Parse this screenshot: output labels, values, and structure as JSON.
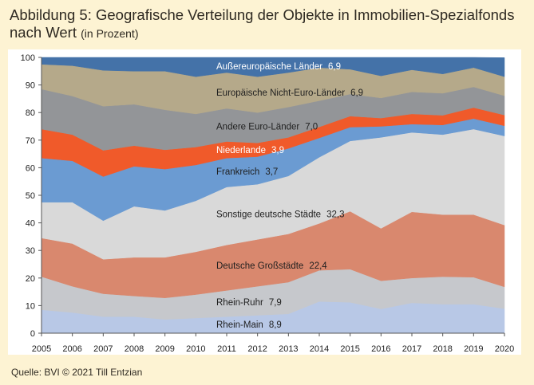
{
  "title": "Abbildung 5: Geografische Verteilung der Objekte in Immobilien-Spezialfonds nach Wert",
  "title_unit": "(in Prozent)",
  "source": "Quelle: BVI © 2021 Till Entzian",
  "chart_data": {
    "type": "area",
    "stacked": true,
    "x": [
      2005,
      2006,
      2007,
      2008,
      2009,
      2010,
      2011,
      2012,
      2013,
      2014,
      2015,
      2016,
      2017,
      2018,
      2019,
      2020
    ],
    "ylim": [
      0,
      100
    ],
    "yticks": [
      0,
      10,
      20,
      30,
      40,
      50,
      60,
      70,
      80,
      90,
      100
    ],
    "legend": "inline",
    "series": [
      {
        "name": "Rhein-Main",
        "label_value": "8,9",
        "color": "#b8c8e6",
        "values": [
          8.5,
          7.5,
          6.0,
          6.0,
          5.0,
          5.5,
          6.0,
          6.5,
          7.0,
          11.5,
          11.2,
          8.8,
          11.0,
          10.5,
          10.5,
          8.9
        ]
      },
      {
        "name": "Rhein-Ruhr",
        "label_value": "7,9",
        "color": "#c6c8cc",
        "values": [
          12.0,
          9.5,
          8.3,
          7.5,
          7.8,
          8.5,
          9.5,
          10.5,
          11.5,
          11.3,
          12.0,
          10.2,
          9.0,
          10.0,
          9.8,
          7.9
        ]
      },
      {
        "name": "Deutsche Großstädte",
        "label_value": "22,4",
        "color": "#d9886e",
        "values": [
          14.0,
          15.5,
          12.5,
          14.0,
          14.7,
          15.5,
          16.5,
          17.0,
          17.5,
          17.0,
          21.0,
          19.0,
          24.0,
          22.5,
          22.7,
          22.4
        ]
      },
      {
        "name": "Sonstige deutsche Städte",
        "label_value": "32,3",
        "color": "#d9d9d9",
        "values": [
          13.0,
          15.0,
          14.0,
          18.5,
          17.0,
          18.5,
          21.0,
          20.0,
          21.0,
          24.0,
          25.5,
          33.0,
          28.8,
          29.0,
          31.0,
          32.3
        ]
      },
      {
        "name": "Frankreich",
        "label_value": "3,7",
        "color": "#6b9bd2",
        "values": [
          16.0,
          15.0,
          16.0,
          14.5,
          15.0,
          13.0,
          10.5,
          10.0,
          10.0,
          7.0,
          5.0,
          4.0,
          3.0,
          3.5,
          3.8,
          3.7
        ]
      },
      {
        "name": "Niederlande",
        "label_value": "3,9",
        "color": "#f05a2a",
        "values": [
          10.5,
          9.5,
          9.5,
          7.5,
          7.0,
          6.5,
          6.0,
          5.0,
          4.0,
          4.0,
          4.0,
          3.0,
          3.7,
          3.5,
          4.0,
          3.9
        ]
      },
      {
        "name": "Andere Euro-Länder",
        "label_value": "7,0",
        "color": "#939598",
        "values": [
          14.5,
          14.0,
          16.0,
          15.0,
          14.5,
          12.0,
          12.0,
          11.0,
          11.0,
          9.5,
          8.0,
          7.3,
          8.0,
          8.0,
          7.5,
          7.0
        ]
      },
      {
        "name": "Europäische Nicht-Euro-Länder",
        "label_value": "6,9",
        "color": "#b5a98a",
        "values": [
          9.0,
          11.0,
          13.0,
          12.0,
          14.0,
          13.5,
          13.0,
          13.0,
          12.5,
          12.0,
          9.0,
          8.0,
          8.0,
          7.0,
          7.0,
          6.9
        ]
      },
      {
        "name": "Außereuropäische Länder",
        "label_value": "6,9",
        "color": "#4472a8",
        "values": [
          2.5,
          3.0,
          4.7,
          5.0,
          5.0,
          7.0,
          5.5,
          7.0,
          5.5,
          3.7,
          4.3,
          6.7,
          4.5,
          6.0,
          3.7,
          6.9
        ]
      }
    ]
  }
}
